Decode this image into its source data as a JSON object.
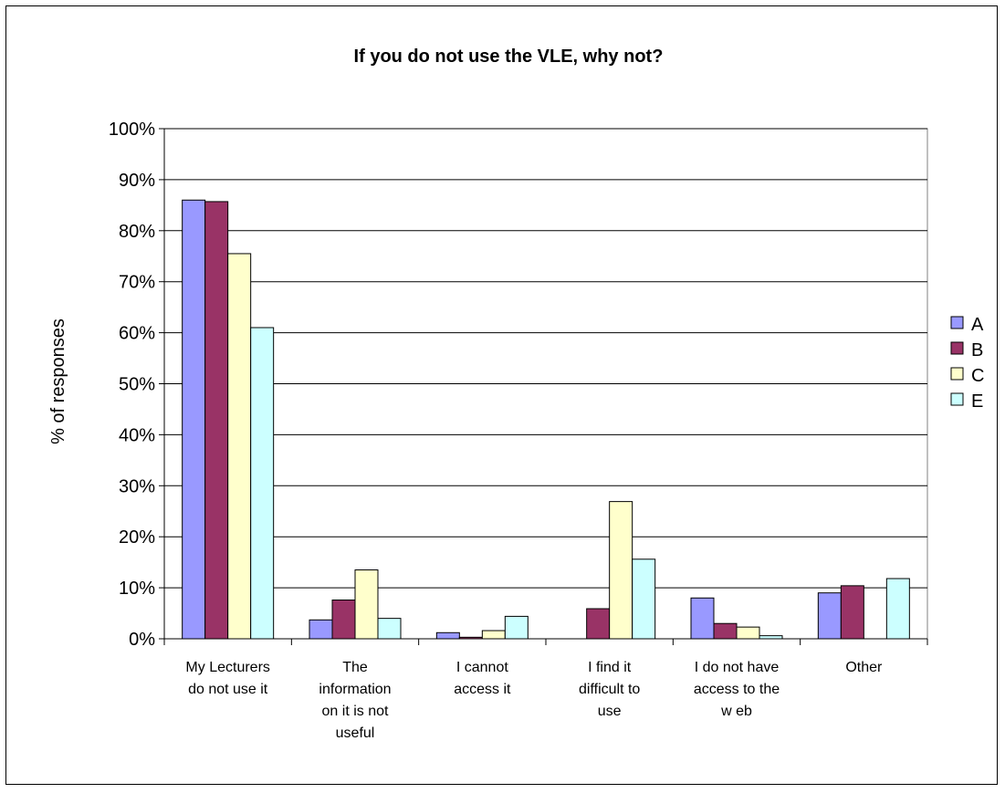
{
  "chart_data": {
    "type": "bar",
    "title": "If you do not use the VLE, why not?",
    "xlabel": "",
    "ylabel": "% of responses",
    "ylim": [
      0,
      100
    ],
    "yticks": [
      "0%",
      "10%",
      "20%",
      "30%",
      "40%",
      "50%",
      "60%",
      "70%",
      "80%",
      "90%",
      "100%"
    ],
    "grid": true,
    "legend_position": "right",
    "categories": [
      [
        "My Lecturers",
        "do not use it"
      ],
      [
        "The",
        "information",
        "on it is not",
        "useful"
      ],
      [
        "I cannot",
        "access it"
      ],
      [
        "I find it",
        "difficult to",
        "use"
      ],
      [
        "I do not have",
        "access to the",
        "w eb"
      ],
      [
        "Other"
      ]
    ],
    "series": [
      {
        "name": "A",
        "color": "#9999ff",
        "values": [
          86,
          3.7,
          1.2,
          0,
          8,
          9
        ]
      },
      {
        "name": "B",
        "color": "#993366",
        "values": [
          85.7,
          7.6,
          0.3,
          5.9,
          3,
          10.4
        ]
      },
      {
        "name": "C",
        "color": "#ffffcc",
        "values": [
          75.5,
          13.5,
          1.6,
          26.9,
          2.3,
          0
        ]
      },
      {
        "name": "E",
        "color": "#ccffff",
        "values": [
          61,
          4,
          4.4,
          15.6,
          0.6,
          11.8
        ]
      }
    ]
  }
}
